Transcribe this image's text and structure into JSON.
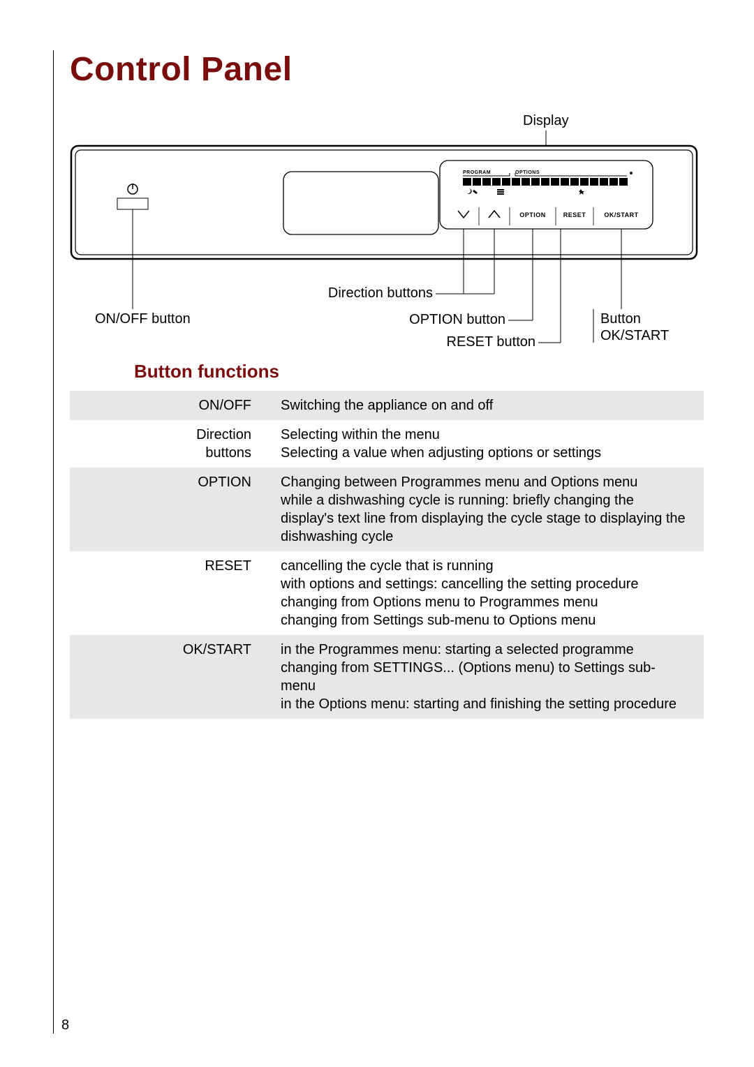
{
  "page": {
    "title": "Control Panel",
    "page_number": "8",
    "colors": {
      "accent": "#7a0c0c",
      "text": "#000000",
      "row_alt_bg": "#e7e7e7",
      "line": "#000000",
      "background": "#ffffff"
    }
  },
  "diagram": {
    "labels": {
      "display": "Display",
      "direction_buttons": "Direction buttons",
      "on_off_button": "ON/OFF button",
      "option_button": "OPTION button",
      "reset_button": "RESET button",
      "ok_start_button_line1": "Button",
      "ok_start_button_line2": "OK/START"
    },
    "panel_buttons": {
      "option": "OPTION",
      "reset": "RESET",
      "okstart": "OK/START"
    },
    "display_header": {
      "program": "PROGRAM",
      "options": "OPTIONS"
    }
  },
  "section_title": "Button functions",
  "table": {
    "rows": [
      {
        "name": "ON/OFF",
        "desc": "Switching the appliance on and off"
      },
      {
        "name": "Direction buttons",
        "desc": "Selecting within the menu\nSelecting a value when adjusting options or settings"
      },
      {
        "name": "OPTION",
        "desc": "Changing between Programmes menu and Options menu\nwhile a dishwashing cycle is running: briefly changing the display's text line from displaying the cycle stage to displaying the dishwashing cycle"
      },
      {
        "name": "RESET",
        "desc": "cancelling the cycle that is running\nwith options and settings: cancelling the setting procedure\nchanging from Options menu to Programmes menu\nchanging from Settings sub-menu to Options menu"
      },
      {
        "name": "OK/START",
        "desc": "in the Programmes menu: starting a selected programme\nchanging from SETTINGS... (Options menu) to Settings sub-menu\nin the Options menu: starting and finishing the setting procedure"
      }
    ]
  }
}
